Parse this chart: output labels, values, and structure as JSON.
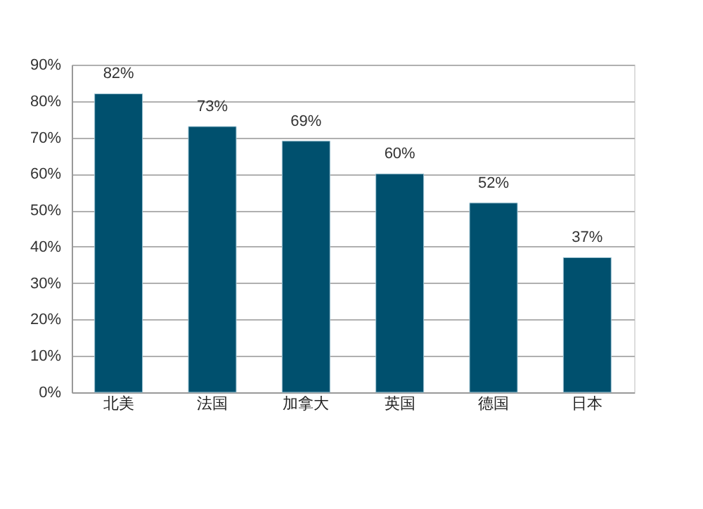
{
  "chart_data": {
    "type": "bar",
    "categories": [
      "北美",
      "法国",
      "加拿大",
      "英国",
      "德国",
      "日本"
    ],
    "values": [
      82,
      73,
      69,
      60,
      52,
      37
    ],
    "value_labels": [
      "82%",
      "73%",
      "69%",
      "60%",
      "52%",
      "37%"
    ],
    "color": "#00506e",
    "ylim": [
      0,
      90
    ],
    "yticks": [
      {
        "value": 0,
        "label": "0%"
      },
      {
        "value": 10,
        "label": "10%"
      },
      {
        "value": 20,
        "label": "20%"
      },
      {
        "value": 30,
        "label": "30%"
      },
      {
        "value": 40,
        "label": "40%"
      },
      {
        "value": 50,
        "label": "50%"
      },
      {
        "value": 60,
        "label": "60%"
      },
      {
        "value": 70,
        "label": "70%"
      },
      {
        "value": 80,
        "label": "80%"
      },
      {
        "value": 90,
        "label": "90%"
      }
    ],
    "grid": "y"
  }
}
